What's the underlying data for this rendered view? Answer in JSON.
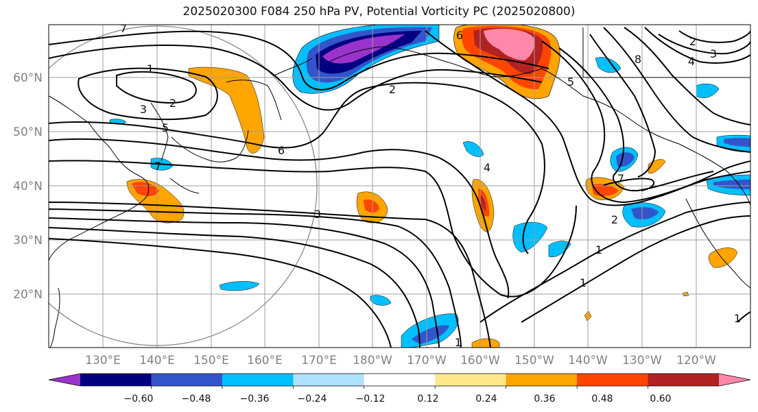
{
  "title": "2025020300 F084 250 hPa PV, Potential Vorticity PC (2025020800)",
  "latitude_labels": [
    "60°N",
    "50°N",
    "40°N",
    "30°N",
    "20°N"
  ],
  "longitude_labels": [
    "130°E",
    "140°E",
    "150°E",
    "160°E",
    "170°E",
    "180°W",
    "170°W",
    "160°W",
    "150°W",
    "140°W",
    "130°W",
    "120°W"
  ],
  "colorbar": {
    "tick_labels": [
      "−0.60",
      "−0.48",
      "−0.36",
      "−0.24",
      "−0.12",
      "0.12",
      "0.24",
      "0.36",
      "0.48",
      "0.60"
    ],
    "colors": [
      "#9933cc",
      "#000080",
      "#3355cc",
      "#00bfff",
      "#b0e0ff",
      "#ffffff",
      "#ffe88a",
      "#ffa500",
      "#ff4500",
      "#b22222",
      "#ff88aa"
    ]
  },
  "contour_labels": [
    "7",
    "1",
    "2",
    "3",
    "5",
    "6",
    "7",
    "3",
    "2",
    "2",
    "6",
    "5",
    "4",
    "3",
    "8",
    "4",
    "7",
    "2",
    "1",
    "1",
    "1",
    "1"
  ]
}
